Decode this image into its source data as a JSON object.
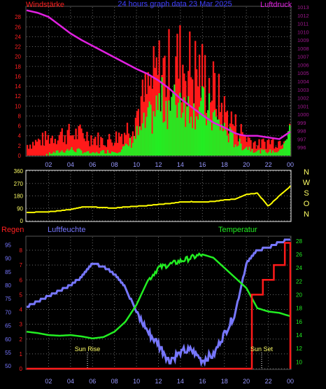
{
  "header": {
    "left_label": "Windstärke",
    "title": "24 hours graph data  23 Mar 2025",
    "right_label": "Luftdruck"
  },
  "x_ticks": [
    "02",
    "04",
    "06",
    "08",
    "10",
    "12",
    "14",
    "16",
    "18",
    "20",
    "22",
    "00"
  ],
  "lower_header": {
    "rain_label": "Regen",
    "humidity_label": "Luftfeuchte",
    "temp_label": "Temperatur"
  },
  "markers": {
    "sunrise": "Sun Rise",
    "sunset": "Sun Set"
  },
  "colors": {
    "wind_max": "#ff1a1a",
    "wind_avg": "#22ee22",
    "pressure": "#e020e0",
    "direction": "#ffff00",
    "humidity": "#7777ff",
    "temperature": "#22ee22",
    "rain": "#ff1a1a",
    "grid": "#6b6b6b",
    "axis_text": "#a01890"
  },
  "chart_data": [
    {
      "type": "bar",
      "title": "24 hours graph data  23 Mar 2025",
      "ylabel_left": "Windstärke",
      "ylabel_right": "Luftdruck",
      "x_hours": [
        0,
        24
      ],
      "ylim_wind": [
        0,
        30
      ],
      "ylim_pressure": [
        995,
        1013
      ],
      "wind_yticks": [
        0,
        2,
        4,
        6,
        8,
        10,
        12,
        14,
        16,
        18,
        20,
        22,
        24,
        26,
        28
      ],
      "pressure_yticks": [
        996,
        997,
        998,
        999,
        1000,
        1001,
        1002,
        1003,
        1004,
        1005,
        1006,
        1007,
        1008,
        1009,
        1010,
        1011,
        1012,
        1013
      ],
      "series": [
        {
          "name": "Luftdruck",
          "hours": [
            0,
            1,
            2,
            3,
            4,
            5,
            6,
            7,
            8,
            9,
            10,
            11,
            12,
            13,
            14,
            15,
            16,
            17,
            18,
            19,
            19.5,
            20,
            21,
            22,
            23,
            24
          ],
          "values": [
            1012.6,
            1012.3,
            1011.8,
            1010.8,
            1009.8,
            1009.0,
            1008.3,
            1007.6,
            1006.9,
            1006.2,
            1005.5,
            1004.9,
            1004.1,
            1003.1,
            1001.9,
            1000.9,
            999.9,
            999.0,
            998.4,
            997.7,
            997.5,
            997.4,
            997.4,
            997.2,
            997.0,
            997.9
          ]
        },
        {
          "name": "Wind max",
          "hours": [
            0,
            1,
            2,
            3,
            4,
            5,
            6,
            7,
            8,
            9,
            10,
            11,
            12,
            13,
            14,
            15,
            16,
            17,
            18,
            19,
            20,
            21,
            22,
            23,
            24
          ],
          "values": [
            3,
            4,
            5,
            6,
            6,
            6,
            5,
            4,
            5,
            7,
            12,
            18,
            23,
            24,
            26,
            24,
            22,
            18,
            12,
            8,
            5,
            3,
            4,
            4,
            10
          ]
        },
        {
          "name": "Wind avg",
          "hours": [
            0,
            1,
            2,
            3,
            4,
            5,
            6,
            7,
            8,
            9,
            10,
            11,
            12,
            13,
            14,
            15,
            16,
            17,
            18,
            19,
            20,
            21,
            22,
            23,
            24
          ],
          "values": [
            0,
            0,
            0.5,
            1,
            1.5,
            1,
            0.5,
            1,
            1,
            2,
            5,
            8,
            12,
            13,
            14,
            13,
            11,
            9,
            6,
            3,
            2,
            1,
            1,
            1,
            8
          ]
        }
      ]
    },
    {
      "type": "line",
      "title": "",
      "right_labels": [
        "N",
        "W",
        "S",
        "O",
        "N"
      ],
      "ylim": [
        0,
        360
      ],
      "yticks": [
        0,
        90,
        180,
        270,
        360
      ],
      "series": [
        {
          "name": "",
          "hours": [
            0,
            2,
            3,
            4,
            5,
            6,
            7,
            8,
            9,
            10,
            11,
            12,
            13,
            14,
            15,
            16,
            17,
            18,
            19,
            19.5,
            20,
            21,
            22,
            23,
            24
          ],
          "values": [
            60,
            65,
            72,
            82,
            98,
            100,
            95,
            92,
            100,
            105,
            110,
            118,
            125,
            135,
            138,
            135,
            140,
            150,
            158,
            175,
            190,
            200,
            105,
            180,
            250
          ]
        }
      ]
    },
    {
      "type": "line",
      "title": "",
      "ylabel_left_outer": "Regen",
      "ylabel_left": "Luftfeuchte",
      "ylabel_right": "Temperatur",
      "humidity_yticks": [
        50,
        55,
        60,
        65,
        70,
        75,
        80,
        85,
        90,
        95
      ],
      "rain_yticks": [
        0,
        1,
        2,
        3,
        4,
        5,
        6,
        7,
        8
      ],
      "temp_yticks": [
        10,
        12,
        14,
        16,
        18,
        20,
        22,
        24,
        26,
        28
      ],
      "series": [
        {
          "name": "Luftfeuchte",
          "hours": [
            0,
            1,
            2,
            3,
            4,
            5,
            6,
            7,
            8,
            9,
            10,
            11,
            12,
            13,
            14,
            15,
            16,
            17,
            18,
            19,
            20,
            21,
            22,
            23,
            24
          ],
          "values": [
            72,
            74,
            76,
            78,
            80,
            83,
            88,
            87,
            84,
            79,
            70,
            63,
            58,
            52,
            55,
            56,
            52,
            54,
            62,
            70,
            88,
            93,
            94,
            96,
            97
          ]
        },
        {
          "name": "Temperatur",
          "hours": [
            0,
            1,
            2,
            3,
            4,
            5,
            6,
            7,
            8,
            9,
            10,
            11,
            12,
            13,
            14,
            15,
            16,
            17,
            18,
            19,
            20,
            21,
            22,
            23,
            24
          ],
          "values": [
            14.5,
            14.3,
            14.0,
            13.9,
            14.0,
            13.8,
            13.5,
            13.7,
            14.5,
            16.0,
            18.5,
            22.0,
            24.0,
            24.5,
            25.0,
            25.5,
            26.0,
            25.5,
            24.0,
            22.5,
            21.0,
            18.0,
            17.5,
            17.3,
            16.8
          ]
        },
        {
          "name": "Regen",
          "hours": [
            0,
            19.5,
            20,
            20.5,
            21,
            21.5,
            22,
            22.5,
            23,
            23.5,
            24
          ],
          "values": [
            0,
            0,
            0,
            5,
            5,
            6,
            6,
            7,
            7,
            8.5,
            0
          ]
        }
      ]
    }
  ]
}
